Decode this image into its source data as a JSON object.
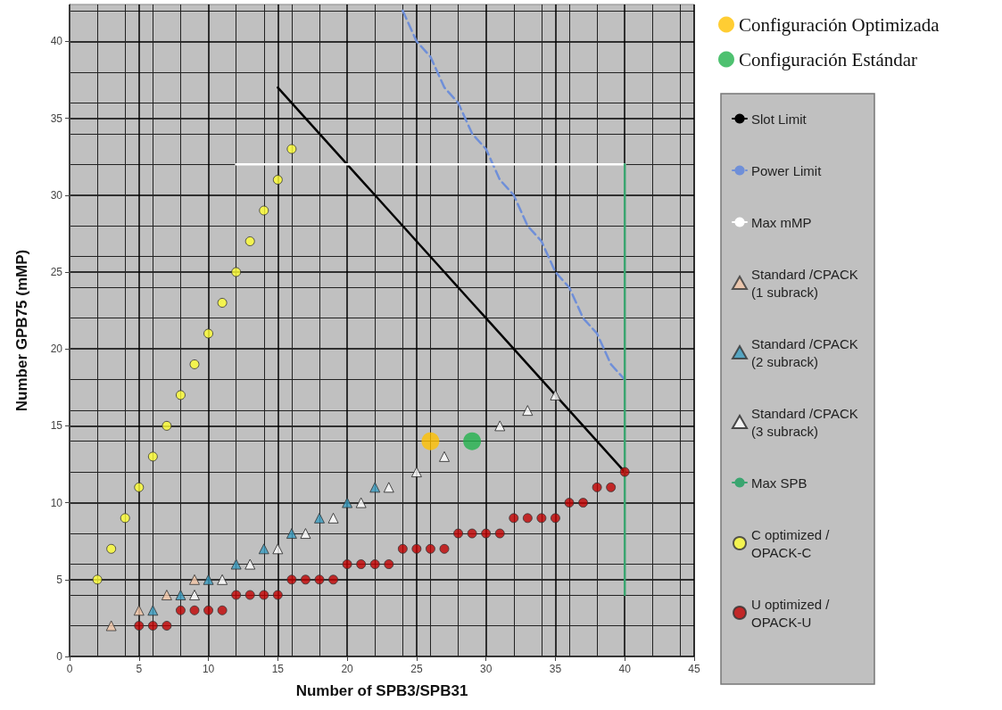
{
  "chart_data": {
    "type": "scatter",
    "xlabel": "Number of SPB3/SPB31",
    "ylabel": "Number GPB75 (mMP)",
    "xlim": [
      0,
      45
    ],
    "xticks": [
      0,
      5,
      10,
      15,
      20,
      25,
      30,
      35,
      40,
      45
    ],
    "ylim": [
      0,
      42.4
    ],
    "yticks": [
      0,
      5,
      10,
      15,
      20,
      25,
      30,
      35,
      40
    ],
    "grid": true,
    "legend": "right",
    "series": [
      {
        "name": "Configuración Optimizada",
        "marker": "circle",
        "color": "#ffc000",
        "x": [
          26
        ],
        "values": [
          14
        ]
      },
      {
        "name": "Configuración Estándar",
        "marker": "circle",
        "color": "#22b14c",
        "x": [
          29
        ],
        "values": [
          14
        ]
      },
      {
        "name": "Slot Limit",
        "type": "line",
        "marker": "none",
        "line_style": "solid",
        "color": "#000000",
        "x": [
          15,
          16,
          17,
          18,
          19,
          20,
          21,
          22,
          23,
          24,
          25,
          26,
          27,
          28,
          29,
          30,
          31,
          32,
          33,
          34,
          35,
          36,
          37,
          38,
          39,
          40
        ],
        "values": [
          37,
          36,
          35,
          34,
          33,
          32,
          31,
          30,
          29,
          28,
          27,
          26,
          25,
          24,
          23,
          22,
          21,
          20,
          19,
          18,
          17,
          16,
          15,
          14,
          13,
          12
        ]
      },
      {
        "name": "Power Limit",
        "type": "line",
        "marker": "none",
        "line_style": "dashed",
        "color": "#6f8fd8",
        "x": [
          24,
          25,
          26,
          27,
          28,
          29,
          30,
          31,
          32,
          33,
          34,
          35,
          36,
          37,
          38,
          39,
          40
        ],
        "values": [
          42,
          40,
          39,
          37,
          36,
          34,
          33,
          31,
          30,
          28,
          27,
          25,
          24,
          22,
          21,
          19,
          18
        ]
      },
      {
        "name": "Max mMP",
        "type": "line",
        "marker": "none",
        "line_style": "solid",
        "color": "#ffffff",
        "x": [
          12,
          40
        ],
        "values": [
          32,
          32
        ]
      },
      {
        "name": "Standard /CPACK (1 subrack)",
        "marker": "triangle",
        "color": "#f4c7a8",
        "x": [
          3,
          5,
          7,
          9
        ],
        "values": [
          2,
          3,
          4,
          5
        ]
      },
      {
        "name": "Standard /CPACK (2 subrack)",
        "marker": "triangle",
        "color": "#3a9cc0",
        "x": [
          6,
          8,
          10,
          12,
          14,
          16,
          18,
          20,
          22
        ],
        "values": [
          3,
          4,
          5,
          6,
          7,
          8,
          9,
          10,
          11
        ]
      },
      {
        "name": "Standard /CPACK (3 subrack)",
        "marker": "triangle",
        "color": "#ffffff",
        "x": [
          9,
          11,
          13,
          15,
          17,
          19,
          21,
          23,
          25,
          27,
          31,
          33,
          35
        ],
        "values": [
          4,
          5,
          6,
          7,
          8,
          9,
          10,
          11,
          12,
          13,
          15,
          16,
          17
        ]
      },
      {
        "name": "Max SPB",
        "type": "line",
        "marker": "none",
        "line_style": "solid",
        "color": "#3aa570",
        "x": [
          40,
          40
        ],
        "values": [
          4,
          32
        ]
      },
      {
        "name": "C optimized /OPACK-C",
        "marker": "circle",
        "color": "#ffff33",
        "x": [
          2,
          3,
          4,
          5,
          6,
          7,
          8,
          9,
          10,
          11,
          12,
          13,
          14,
          15,
          16
        ],
        "values": [
          5,
          7,
          9,
          11,
          13,
          15,
          17,
          19,
          21,
          23,
          25,
          27,
          29,
          31,
          33
        ]
      },
      {
        "name": "U optimized /OPACK-U",
        "marker": "circle",
        "color": "#c00000",
        "x": [
          5,
          6,
          7,
          8,
          9,
          10,
          11,
          12,
          13,
          14,
          15,
          16,
          17,
          18,
          19,
          20,
          21,
          22,
          23,
          24,
          25,
          26,
          27,
          28,
          29,
          30,
          31,
          32,
          33,
          34,
          35,
          36,
          37,
          38,
          39,
          40
        ],
        "values": [
          2,
          2,
          2,
          3,
          3,
          3,
          3,
          4,
          4,
          4,
          4,
          5,
          5,
          5,
          5,
          6,
          6,
          6,
          6,
          7,
          7,
          7,
          7,
          8,
          8,
          8,
          8,
          9,
          9,
          9,
          9,
          10,
          10,
          11,
          11,
          12
        ]
      }
    ]
  }
}
